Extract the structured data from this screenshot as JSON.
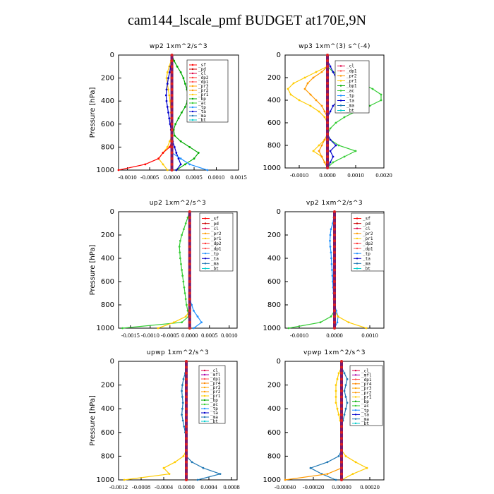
{
  "title": "cam144_lscale_pmf  BUDGET at170E,9N",
  "colors": {
    "sf": "#ff0000",
    "pd": "#cc0000",
    "cl": "#dd0044",
    "dp2": "#ff3333",
    "dp1": "#ff5050",
    "pr3": "#ffa500",
    "pr2": "#ff9900",
    "pr1": "#ffcc00",
    "pr4": "#ff8800",
    "bp": "#00aa00",
    "ac": "#33cc33",
    "tp": "#1e90ff",
    "ta": "#0000cc",
    "ma": "#1f77b4",
    "bt": "#00cccc",
    "mfl": "#aa00aa",
    "bt_line": "#7b1a6b"
  },
  "chart_data": [
    {
      "type": "line",
      "title": "wp2  1xm^2/s^3",
      "ylabel": "Pressure  [hPa]",
      "xlim": [
        -0.0012,
        0.0015
      ],
      "ylim": [
        1000,
        0
      ],
      "xticks": [
        -0.001,
        -0.0005,
        0.0,
        0.0005,
        0.001,
        0.0015
      ],
      "xtick_labels": [
        "-0.0010",
        "-0.0005",
        "0.0000",
        "0.0005",
        "0.0010",
        "0.0015"
      ],
      "yticks": [
        0,
        200,
        400,
        600,
        800,
        1000
      ],
      "legend": [
        "_sf",
        "_pd",
        "_cl",
        "_dp2",
        "_dp1",
        "_pr3",
        "_pr2",
        "_pr1",
        "_bp",
        "_ac",
        "_tp",
        "_ta",
        "_ma",
        "_bt"
      ],
      "p": [
        0,
        50,
        100,
        150,
        200,
        250,
        300,
        350,
        400,
        450,
        500,
        550,
        600,
        650,
        700,
        750,
        800,
        850,
        900,
        950,
        1000
      ],
      "series": [
        {
          "name": "bp",
          "key": "bp",
          "values": [
            0.0,
            5e-05,
            0.00012,
            0.0002,
            0.00026,
            0.0003,
            0.00034,
            0.00036,
            0.00035,
            0.0003,
            0.00022,
            0.00015,
            8e-05,
            4e-05,
            6e-05,
            0.0002,
            0.0004,
            0.0006,
            0.0005,
            0.0003,
            0.0001
          ]
        },
        {
          "name": "pr1",
          "key": "pr1",
          "values": [
            0.0,
            -2e-05,
            -6e-05,
            -0.0001,
            -0.00012,
            -0.0001,
            -8e-05,
            -6e-05,
            -4e-05,
            -3e-05,
            -2e-05,
            -2e-05,
            -1e-05,
            0.0,
            0.0,
            -5e-05,
            -0.0001,
            -0.0002,
            -0.0003,
            -0.0002,
            -0.0001
          ]
        },
        {
          "name": "ta",
          "key": "ta",
          "values": [
            0.0,
            -1e-05,
            -3e-05,
            -5e-05,
            -8e-05,
            -0.0001,
            -0.00012,
            -0.00013,
            -0.00012,
            -0.0001,
            -8e-05,
            -6e-05,
            -4e-05,
            -2e-05,
            0.0,
            2e-05,
            6e-05,
            0.0001,
            0.00015,
            0.0002,
            0.0001
          ]
        },
        {
          "name": "sf",
          "key": "sf",
          "values": [
            0.0,
            0.0,
            0.0,
            0.0,
            0.0,
            0.0,
            0.0,
            0.0,
            0.0,
            0.0,
            0.0,
            0.0,
            0.0,
            0.0,
            0.0,
            0.0,
            -5e-05,
            -0.0002,
            -0.0003,
            -0.0006,
            -0.0012
          ]
        },
        {
          "name": "tp",
          "key": "tp",
          "values": [
            0.0,
            0.0,
            0.0,
            0.0,
            0.0,
            0.0,
            0.0,
            0.0,
            0.0,
            0.0,
            0.0,
            0.0,
            0.0,
            0.0,
            0.0,
            0.0,
            0.0,
            0.0,
            0.0002,
            0.0004,
            0.0008
          ]
        }
      ]
    },
    {
      "type": "line",
      "title": "wp3  1xm^(3) s^(-4)",
      "ylabel": "",
      "xlim": [
        -0.0015,
        0.002
      ],
      "ylim": [
        1000,
        0
      ],
      "xticks": [
        -0.001,
        0.0,
        0.001,
        0.002
      ],
      "xtick_labels": [
        "-0.0010",
        "0.0000",
        "0.0010",
        "0.0020"
      ],
      "yticks": [
        0,
        200,
        400,
        600,
        800,
        1000
      ],
      "legend": [
        "_cl",
        "_dp1",
        "_pr2",
        "_pr1",
        "_bp1",
        "_ac",
        "_tp",
        "_ta",
        "_ma",
        "_bt"
      ],
      "p": [
        0,
        50,
        100,
        150,
        200,
        250,
        300,
        350,
        400,
        450,
        500,
        550,
        600,
        650,
        700,
        750,
        800,
        850,
        900,
        950,
        1000
      ],
      "series": [
        {
          "name": "ac",
          "key": "ac",
          "values": [
            0.0,
            0.0,
            0.0,
            0.0002,
            0.0007,
            0.0012,
            0.0016,
            0.0019,
            0.0019,
            0.0015,
            0.001,
            0.0006,
            0.0003,
            0.0001,
            0.0,
            0.0001,
            0.0004,
            0.001,
            0.0006,
            0.0002,
            0.0
          ]
        },
        {
          "name": "pr1",
          "key": "pr1",
          "values": [
            0.0,
            0.0,
            0.0,
            -0.0004,
            -0.0008,
            -0.0012,
            -0.0014,
            -0.0013,
            -0.001,
            -0.0006,
            -0.0003,
            -0.0001,
            0.0,
            0.0,
            0.0,
            -0.0001,
            -0.0003,
            -0.0005,
            -0.0002,
            -0.0001,
            0.0
          ]
        },
        {
          "name": "pr2",
          "key": "pr2",
          "values": [
            0.0,
            0.0,
            0.0,
            -0.0002,
            -0.0005,
            -0.0007,
            -0.0008,
            -0.0006,
            -0.0004,
            -0.0002,
            -0.0001,
            0.0,
            0.0,
            0.0,
            0.0,
            -0.0001,
            -0.0002,
            -0.0003,
            -0.0002,
            -0.0001,
            0.0
          ]
        },
        {
          "name": "ta",
          "key": "ta",
          "values": [
            0.0,
            0.0,
            0.0001,
            0.0002,
            0.0003,
            0.0004,
            0.0005,
            0.0005,
            0.0004,
            0.0002,
            0.0001,
            0.0,
            0.0,
            0.0,
            0.0,
            0.0001,
            0.0003,
            0.0001,
            0.0002,
            0.0001,
            0.0
          ]
        }
      ]
    },
    {
      "type": "line",
      "title": "up2  1xm^2/s^3",
      "ylabel": "Pressure  [hPa]",
      "xlim": [
        -0.0018,
        0.0012
      ],
      "ylim": [
        1000,
        0
      ],
      "xticks": [
        -0.0015,
        -0.001,
        -0.0005,
        0.0,
        0.0005,
        0.001
      ],
      "xtick_labels": [
        "-0.0015",
        "-0.0010",
        "-0.0005",
        "0.0000",
        "0.0005",
        "0.0010"
      ],
      "yticks": [
        0,
        200,
        400,
        600,
        800,
        1000
      ],
      "legend": [
        "_sf",
        "_pd",
        "_cl",
        "_pr2",
        "_pr1",
        "_dp2",
        "_dp1",
        "_tp",
        "_ta",
        "_ma",
        "_bt"
      ],
      "p": [
        0,
        50,
        100,
        150,
        200,
        250,
        300,
        350,
        400,
        450,
        500,
        550,
        600,
        650,
        700,
        750,
        800,
        850,
        900,
        950,
        1000
      ],
      "series": [
        {
          "name": "dp1",
          "key": "ac",
          "values": [
            0.0,
            -5e-05,
            -0.0001,
            -0.00015,
            -0.0002,
            -0.00024,
            -0.00026,
            -0.00025,
            -0.00024,
            -0.00022,
            -0.0002,
            -0.00018,
            -0.00016,
            -0.00014,
            -0.00012,
            -0.0001,
            -8e-05,
            -5e-05,
            -3e-05,
            -0.0002,
            -0.0017
          ]
        },
        {
          "name": "tp",
          "key": "tp",
          "values": [
            0.0,
            0.0,
            0.0,
            0.0,
            0.0,
            0.0,
            0.0,
            0.0,
            0.0,
            0.0,
            0.0,
            0.0,
            0.0,
            0.0,
            0.0,
            0.0,
            5e-05,
            0.0001,
            0.0002,
            0.0003,
            0.0001
          ]
        },
        {
          "name": "pr1",
          "key": "pr1",
          "values": [
            0.0,
            0.0,
            0.0,
            0.0,
            0.0,
            0.0,
            0.0,
            0.0,
            0.0,
            0.0,
            0.0,
            0.0,
            0.0,
            0.0,
            0.0,
            0.0,
            0.0,
            0.0,
            -0.0001,
            -0.0004,
            -0.0008
          ]
        }
      ]
    },
    {
      "type": "line",
      "title": "vp2  1xm^2/s^3",
      "ylabel": "",
      "xlim": [
        -0.0014,
        0.0014
      ],
      "ylim": [
        1000,
        0
      ],
      "xticks": [
        -0.001,
        0.0,
        0.001
      ],
      "xtick_labels": [
        "-0.0010",
        "0.0000",
        "0.0010"
      ],
      "yticks": [
        0,
        200,
        400,
        600,
        800,
        1000
      ],
      "legend": [
        "_sf",
        "_pd",
        "_cl",
        "_pr2",
        "_pr1",
        "_dp2",
        "_dp1",
        "_tp",
        "_ta",
        "_ma",
        "_bt"
      ],
      "p": [
        0,
        50,
        100,
        150,
        200,
        250,
        300,
        350,
        400,
        450,
        500,
        550,
        600,
        650,
        700,
        750,
        800,
        850,
        900,
        950,
        1000
      ],
      "series": [
        {
          "name": "tp",
          "key": "tp",
          "values": [
            0.0,
            -2e-05,
            -5e-05,
            -0.0001,
            -0.00012,
            -0.00013,
            -0.00012,
            -0.0001,
            -9e-05,
            -8e-05,
            -7e-05,
            -6e-05,
            -5e-05,
            -4e-05,
            -3e-05,
            -2e-05,
            0.0,
            5e-05,
            0.0001,
            8e-05,
            0.0
          ]
        },
        {
          "name": "dp1",
          "key": "ac",
          "values": [
            0.0,
            0.0,
            0.0,
            0.0,
            0.0,
            0.0,
            0.0,
            0.0,
            0.0,
            0.0,
            0.0,
            0.0,
            0.0,
            0.0,
            0.0,
            0.0,
            0.0,
            0.0,
            -0.0001,
            -0.0004,
            -0.0013
          ]
        },
        {
          "name": "pr1",
          "key": "pr1",
          "values": [
            0.0,
            0.0,
            0.0,
            0.0,
            0.0,
            0.0,
            0.0,
            0.0,
            0.0,
            0.0,
            0.0,
            0.0,
            0.0,
            0.0,
            0.0,
            0.0,
            0.0,
            0.0,
            0.0001,
            0.0004,
            0.0009
          ]
        }
      ]
    },
    {
      "type": "line",
      "title": "upwp  1xm^2/s^3",
      "ylabel": "Pressure  [hPa]",
      "xlim": [
        -0.0012,
        0.0009
      ],
      "ylim": [
        1000,
        0
      ],
      "xticks": [
        -0.0012,
        -0.0008,
        -0.0004,
        0.0,
        0.0004,
        0.0008
      ],
      "xtick_labels": [
        "-0.0012",
        "-0.0008",
        "-0.0004",
        "0.0000",
        "0.0004",
        "0.0008"
      ],
      "yticks": [
        0,
        200,
        400,
        600,
        800,
        1000
      ],
      "legend": [
        "_cl",
        "_mfl",
        "_dp1",
        "_pr4",
        "_pr3",
        "_pr2",
        "_pr1",
        "_bp",
        "_ac",
        "_tp",
        "_ta",
        "_ma",
        "_bt"
      ],
      "p": [
        0,
        50,
        100,
        150,
        200,
        250,
        300,
        350,
        400,
        450,
        500,
        550,
        600,
        650,
        700,
        750,
        800,
        850,
        900,
        950,
        1000
      ],
      "series": [
        {
          "name": "ma",
          "key": "ma",
          "values": [
            0.0,
            0.0,
            -2e-05,
            -5e-05,
            -7e-05,
            -8e-05,
            -7e-05,
            -6e-05,
            -7e-05,
            -8e-05,
            -6e-05,
            -4e-05,
            -2e-05,
            0.0,
            0.0,
            0.0,
            0.0,
            0.0001,
            0.0003,
            0.0006,
            0.0002
          ]
        },
        {
          "name": "pr1",
          "key": "pr1",
          "values": [
            0.0,
            0.0,
            0.0,
            0.0,
            0.0,
            0.0,
            0.0,
            0.0,
            0.0,
            0.0,
            0.0,
            0.0,
            0.0,
            0.0,
            0.0,
            0.0,
            -5e-05,
            -0.0002,
            -0.0004,
            -0.0003,
            -0.0011
          ]
        }
      ]
    },
    {
      "type": "line",
      "title": "vpwp  1xm^2/s^3",
      "ylabel": "",
      "xlim": [
        -0.0004,
        0.0003
      ],
      "ylim": [
        1000,
        0
      ],
      "xticks": [
        -0.0004,
        -0.0002,
        0.0,
        0.0002
      ],
      "xtick_labels": [
        "-0.00040",
        "-0.00020",
        "0.00000",
        "0.00020"
      ],
      "yticks": [
        0,
        200,
        400,
        600,
        800,
        1000
      ],
      "legend": [
        "_cl",
        "_mfl",
        "_dp1",
        "_pr4",
        "_pr3",
        "_pr2",
        "_pr1",
        "_bp",
        "_ac",
        "_tp",
        "_ta",
        "_ma",
        "_bt"
      ],
      "p": [
        0,
        50,
        100,
        150,
        200,
        250,
        300,
        350,
        400,
        450,
        500,
        550,
        600,
        650,
        700,
        750,
        800,
        850,
        900,
        950,
        1000
      ],
      "series": [
        {
          "name": "ma",
          "key": "ma",
          "values": [
            0.0,
            0.0,
            2e-05,
            4e-05,
            3e-05,
            2e-05,
            3e-05,
            4e-05,
            3e-05,
            2e-05,
            1e-05,
            0.0,
            0.0,
            0.0,
            0.0,
            0.0,
            -2e-05,
            -0.0001,
            -0.00022,
            -0.00014,
            -4e-05
          ]
        },
        {
          "name": "pr1",
          "key": "pr1",
          "values": [
            0.0,
            0.0,
            -2e-05,
            -3e-05,
            -4e-05,
            -4e-05,
            -4e-05,
            -4e-05,
            -3e-05,
            -2e-05,
            -1e-05,
            0.0,
            0.0,
            0.0,
            0.0,
            0.0,
            3e-05,
            0.0001,
            0.00018,
            8e-05,
            0.0
          ]
        },
        {
          "name": "pr4",
          "key": "pr2",
          "values": [
            0.0,
            0.0,
            0.0,
            0.0,
            0.0,
            0.0,
            0.0,
            0.0,
            0.0,
            0.0,
            0.0,
            0.0,
            0.0,
            0.0,
            0.0,
            0.0,
            0.0,
            0.0,
            0.0,
            -0.0001,
            -0.0004
          ]
        }
      ]
    }
  ]
}
